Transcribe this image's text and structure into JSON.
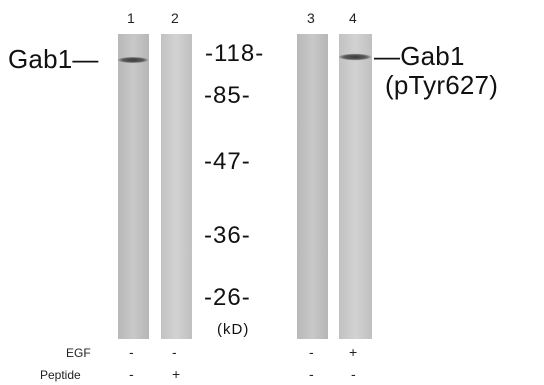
{
  "lanes": [
    "1",
    "2",
    "3",
    "4"
  ],
  "band_labels": {
    "left": "Gab1—",
    "right_line1": "—Gab1",
    "right_line2": "(pTyr627)"
  },
  "markers": [
    "-118-",
    "-85-",
    "-47-",
    "-36-",
    "-26-"
  ],
  "unit": "(kD)",
  "conditions": {
    "egf_label": "EGF",
    "peptide_label": "Peptide",
    "egf": [
      "-",
      "-",
      "-",
      "+"
    ],
    "peptide": [
      "-",
      "+",
      "-",
      "-"
    ]
  },
  "colors": {
    "background": "#ffffff",
    "lane_light": "#cfcfcf",
    "lane_mid": "#bdbdbd",
    "band": "#4a4a4a"
  }
}
